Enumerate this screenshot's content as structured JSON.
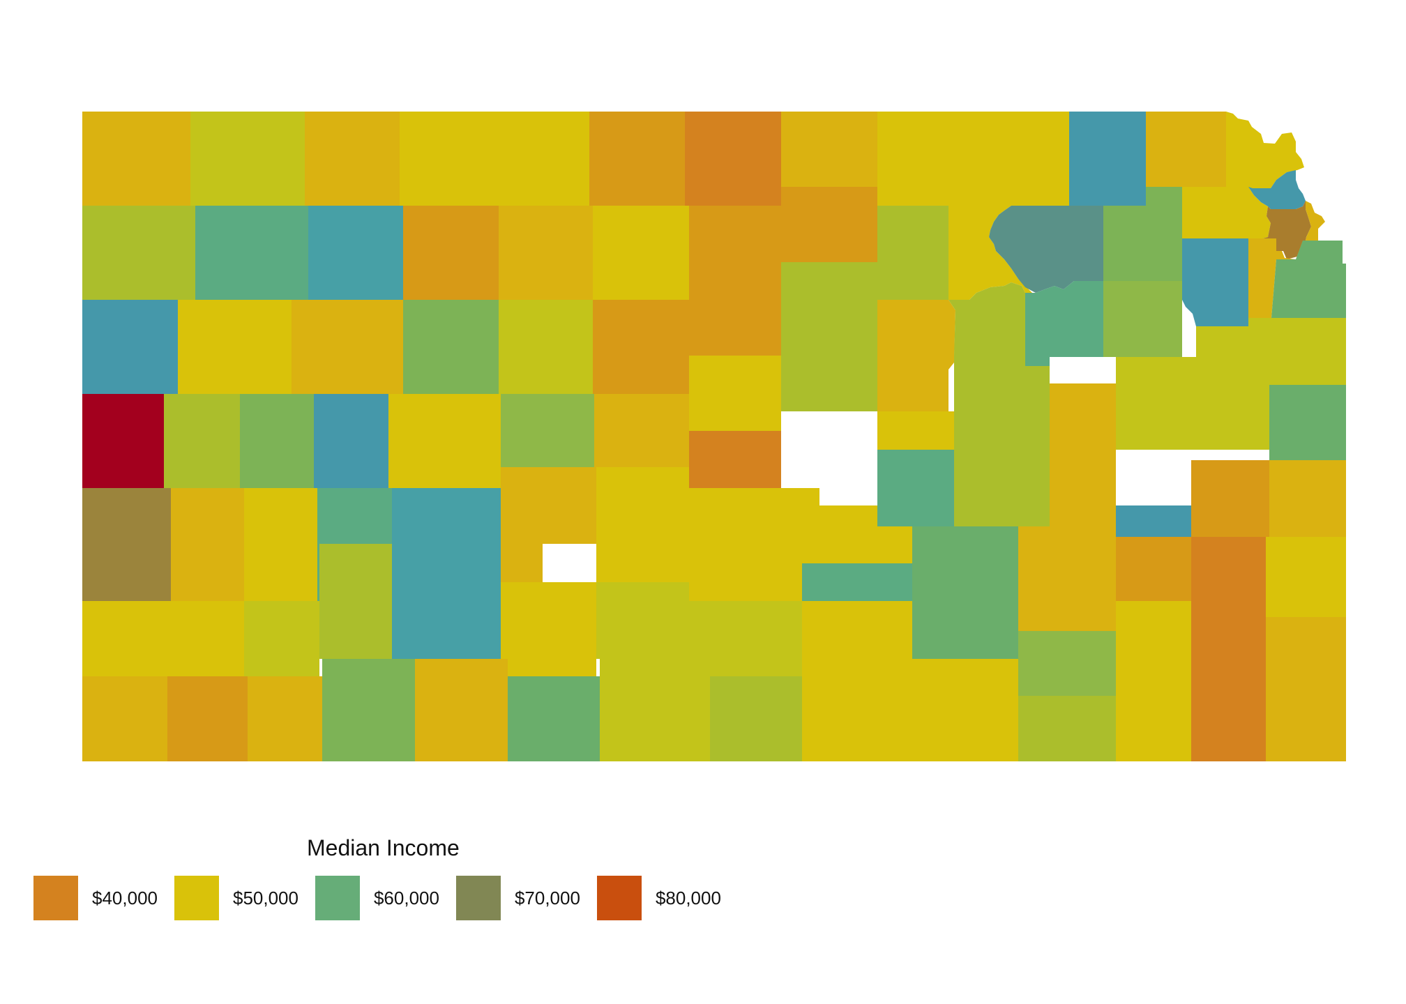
{
  "legend": {
    "title": "Median Income",
    "items": [
      {
        "label": "$40,000",
        "color": "#d4821f"
      },
      {
        "label": "$50,000",
        "color": "#d9c20a"
      },
      {
        "label": "$60,000",
        "color": "#66ad78"
      },
      {
        "label": "$70,000",
        "color": "#818754"
      },
      {
        "label": "$80,000",
        "color": "#c94f0e"
      }
    ]
  },
  "palette": {
    "a": "#d4821f",
    "b": "#d79a17",
    "c": "#dab211",
    "d": "#d9c20a",
    "e": "#c3c41a",
    "f": "#abbe2c",
    "g": "#8fb848",
    "h": "#7db356",
    "i": "#6aae6b",
    "j": "#5bab82",
    "k": "#47a0a6",
    "l": "#4598aa",
    "m": "#5a9188",
    "n": "#a97d2d",
    "o": "#9b843c",
    "p": "#a3001e"
  },
  "map": {
    "county_colors": [
      "c",
      "e",
      "c",
      "d",
      "d",
      "b",
      "a",
      "c",
      "d",
      "d",
      "l",
      "c",
      "d",
      "f",
      "j",
      "k",
      "b",
      "c",
      "d",
      "b",
      "b",
      "f",
      "d",
      "m",
      "h",
      "d",
      "l",
      "n",
      "c",
      "l",
      "d",
      "c",
      "h",
      "e",
      "b",
      "b",
      "f",
      "c",
      "f",
      "j",
      "g",
      "l",
      "i",
      "p",
      "f",
      "h",
      "l",
      "d",
      "g",
      "c",
      "d",
      "f",
      "d",
      "f",
      "c",
      "e",
      "e",
      "i",
      "o",
      "c",
      "d",
      "j",
      "j",
      "k",
      "c",
      "d",
      "d",
      "d",
      "i",
      "c",
      "l",
      "b",
      "b",
      "c",
      "d",
      "d",
      "e",
      "f",
      "k",
      "d",
      "e",
      "e",
      "j",
      "g",
      "d",
      "a",
      "d",
      "c",
      "b",
      "c",
      "h",
      "c",
      "i",
      "e",
      "f",
      "d",
      "d",
      "f",
      "d",
      "a",
      "c",
      "d",
      "a",
      "j",
      "f",
      "b",
      "i"
    ]
  }
}
